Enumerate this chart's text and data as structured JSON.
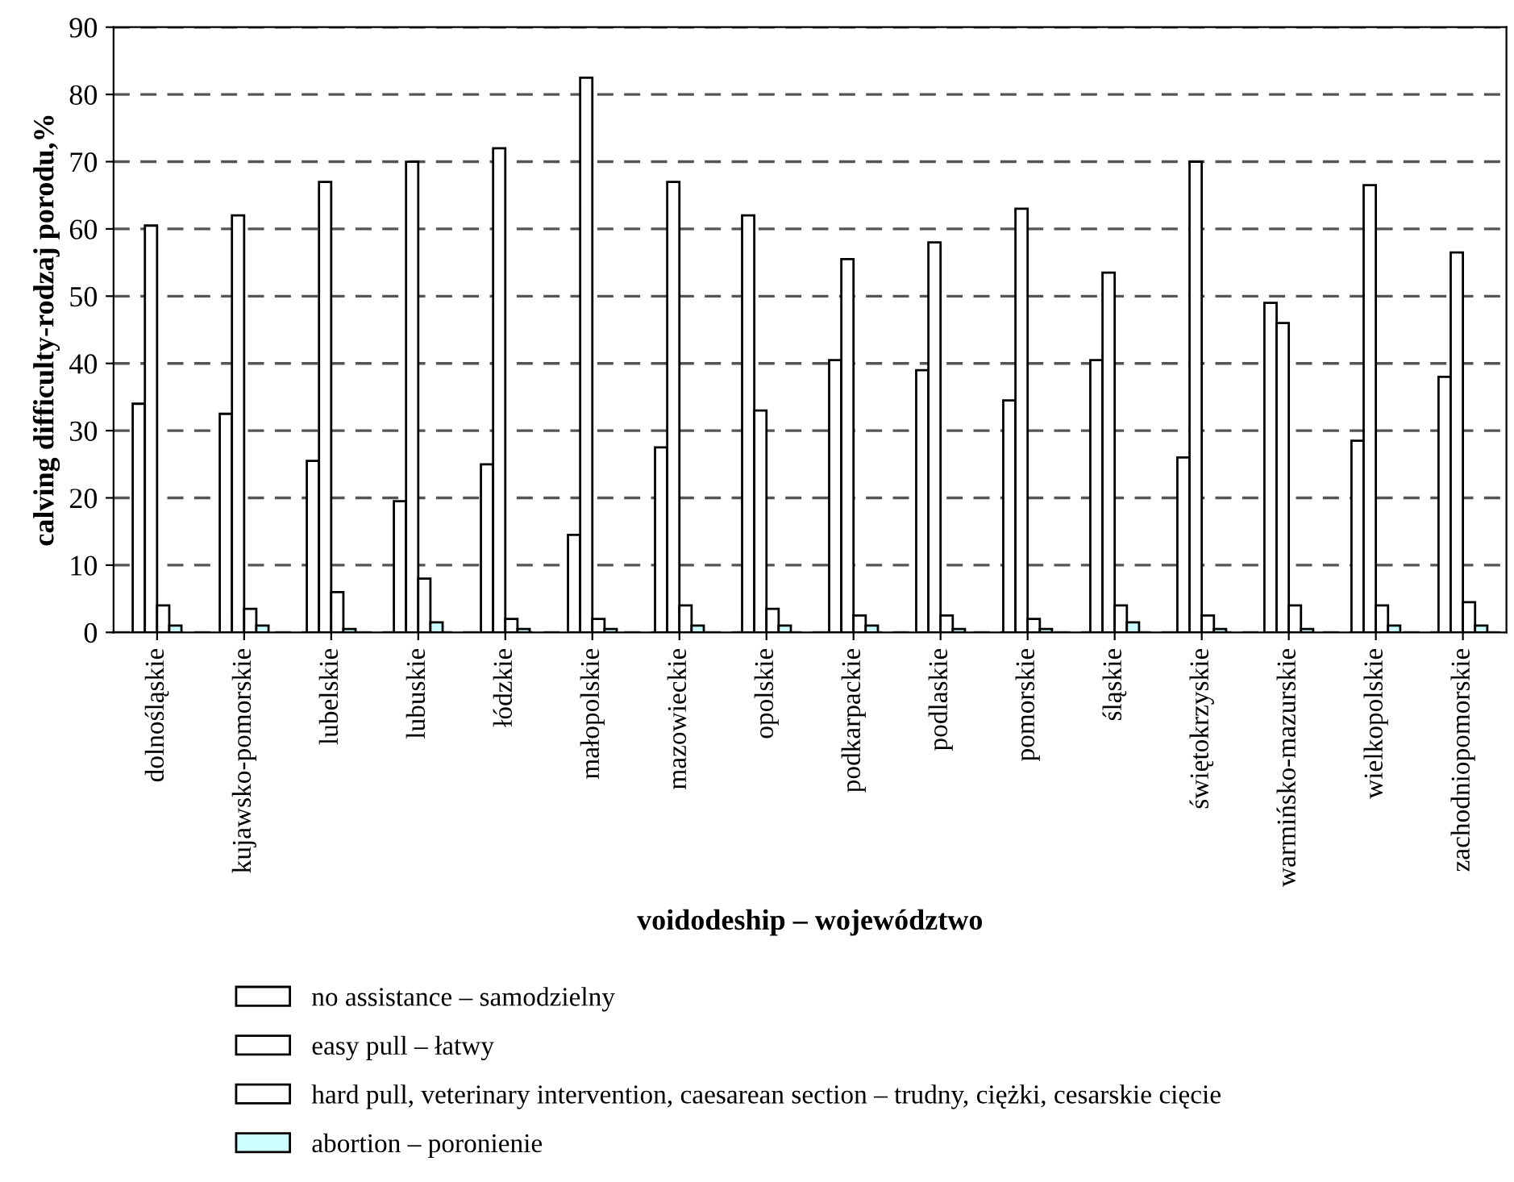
{
  "chart_data": {
    "type": "bar",
    "xlabel": "voidodeship – województwo",
    "ylabel": "calving difficulty-rodzaj porodu,%",
    "categories": [
      "dolnośląskie",
      "kujawsko-pomorskie",
      "lubelskie",
      "lubuskie",
      "łódzkie",
      "małopolskie",
      "mazowieckie",
      "opolskie",
      "podkarpackie",
      "podlaskie",
      "pomorskie",
      "śląskie",
      "świętokrzyskie",
      "warmińsko-mazurskie",
      "wielkopolskie",
      "zachodniopomorskie"
    ],
    "series": [
      {
        "name": "no assistance – samodzielny",
        "color": "#ffffff",
        "values": [
          34,
          32.5,
          25.5,
          19.5,
          25,
          14.5,
          27.5,
          62,
          40.5,
          39,
          34.5,
          40.5,
          26,
          49,
          28.5,
          38
        ]
      },
      {
        "name": "easy pull – łatwy",
        "color": "#ffffff",
        "values": [
          60.5,
          62,
          67,
          70,
          72,
          82.5,
          67,
          33,
          55.5,
          58,
          63,
          53.5,
          70,
          46,
          66.5,
          56.5
        ]
      },
      {
        "name": "hard pull, veterinary intervention, caesarean section – trudny, ciężki, cesarskie cięcie",
        "color": "#ffffff",
        "values": [
          4,
          3.5,
          6,
          8,
          2,
          2,
          4,
          3.5,
          2.5,
          2.5,
          2,
          4,
          2.5,
          4,
          4,
          4.5
        ]
      },
      {
        "name": "abortion – poronienie",
        "color": "#ccffff",
        "values": [
          1,
          1,
          0.5,
          1.5,
          0.5,
          0.5,
          1,
          1,
          1,
          0.5,
          0.5,
          1.5,
          0.5,
          0.5,
          1,
          1
        ]
      }
    ],
    "ylim": [
      0,
      90
    ],
    "yticks": [
      0,
      10,
      20,
      30,
      40,
      50,
      60,
      70,
      80,
      90
    ],
    "grid": "y",
    "legend": "bottom"
  }
}
